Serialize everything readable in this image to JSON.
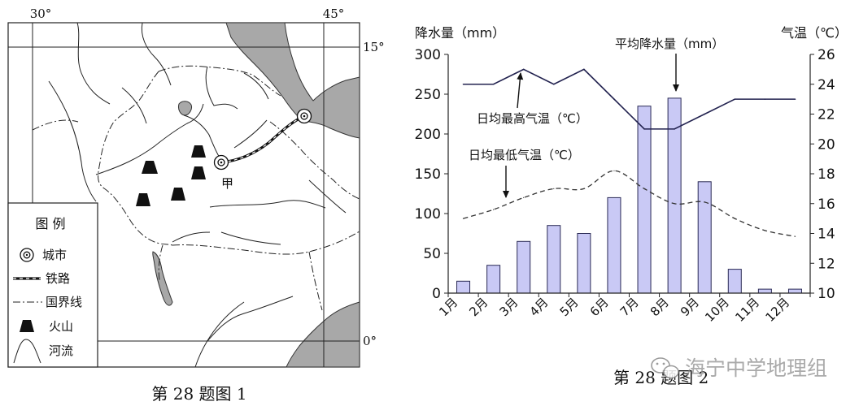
{
  "figure1": {
    "caption": "第 28 题图 1",
    "coordinates": {
      "lon_left": "30°",
      "lon_right": "45°",
      "lat_top": "15°",
      "lat_bottom": "0°"
    },
    "place_label": "甲",
    "legend": {
      "title": "图 例",
      "items": [
        {
          "icon": "city-icon",
          "label": "城市"
        },
        {
          "icon": "railway-line-icon",
          "label": "铁路"
        },
        {
          "icon": "border-line-icon",
          "label": "国界线"
        },
        {
          "icon": "volcano-icon",
          "label": "火山"
        },
        {
          "icon": "river-icon",
          "label": "河流"
        }
      ]
    },
    "colors": {
      "sea": "#a8a8a8",
      "land": "#ffffff",
      "line": "#222222"
    }
  },
  "figure2": {
    "caption": "第 28 题图 2"
  },
  "watermark": {
    "icon": "wechat-icon",
    "text": "海宁中学地理组"
  },
  "chart_data": {
    "type": "bar",
    "categories": [
      "1月",
      "2月",
      "3月",
      "4月",
      "5月",
      "6月",
      "7月",
      "8月",
      "9月",
      "10月",
      "11月",
      "12月"
    ],
    "ylabel": "降水量（mm）",
    "ylabel_right": "气温（℃）",
    "ylim": [
      0,
      300
    ],
    "ylim_right": [
      10,
      26
    ],
    "yticks": [
      0,
      50,
      100,
      150,
      200,
      250,
      300
    ],
    "yticks_right": [
      10,
      12,
      14,
      16,
      18,
      20,
      22,
      24,
      26
    ],
    "grid": false,
    "series": [
      {
        "name": "平均降水量（mm）",
        "type": "bar",
        "axis": "left",
        "color": "#c9c9f5",
        "values": [
          15,
          35,
          65,
          85,
          75,
          120,
          235,
          245,
          140,
          30,
          5,
          5
        ]
      },
      {
        "name": "日均最高气温（℃）",
        "type": "line",
        "axis": "right",
        "color": "#22224f",
        "values": [
          24,
          24,
          25,
          24,
          25,
          23,
          21,
          21,
          22,
          23,
          23,
          23
        ]
      },
      {
        "name": "日均最低气温（℃）",
        "type": "line",
        "style": "dashed",
        "axis": "right",
        "color": "#333333",
        "values": [
          15,
          15.6,
          16.4,
          17,
          17,
          18.2,
          17,
          16,
          16.1,
          15,
          14.2,
          13.8
        ]
      }
    ]
  }
}
